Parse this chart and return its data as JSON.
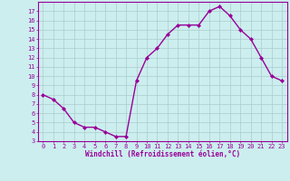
{
  "x": [
    0,
    1,
    2,
    3,
    4,
    5,
    6,
    7,
    8,
    9,
    10,
    11,
    12,
    13,
    14,
    15,
    16,
    17,
    18,
    19,
    20,
    21,
    22,
    23
  ],
  "y": [
    8.0,
    7.5,
    6.5,
    5.0,
    4.5,
    4.5,
    4.0,
    3.5,
    3.5,
    9.5,
    12.0,
    13.0,
    14.5,
    15.5,
    15.5,
    15.5,
    17.0,
    17.5,
    16.5,
    15.0,
    14.0,
    12.0,
    10.0,
    9.5
  ],
  "line_color": "#990099",
  "marker": "D",
  "marker_size": 2.0,
  "bg_color": "#cceeee",
  "grid_color": "#aacccc",
  "xlabel": "Windchill (Refroidissement éolien,°C)",
  "xlim": [
    -0.5,
    23.5
  ],
  "ylim": [
    3,
    18
  ],
  "xtick_vals": [
    0,
    1,
    2,
    3,
    4,
    5,
    6,
    7,
    8,
    9,
    10,
    11,
    12,
    13,
    14,
    15,
    16,
    17,
    18,
    19,
    20,
    21,
    22,
    23
  ],
  "ytick_vals": [
    3,
    4,
    5,
    6,
    7,
    8,
    9,
    10,
    11,
    12,
    13,
    14,
    15,
    16,
    17
  ],
  "xlabel_fontsize": 5.5,
  "tick_fontsize": 5.0,
  "line_width": 1.0
}
